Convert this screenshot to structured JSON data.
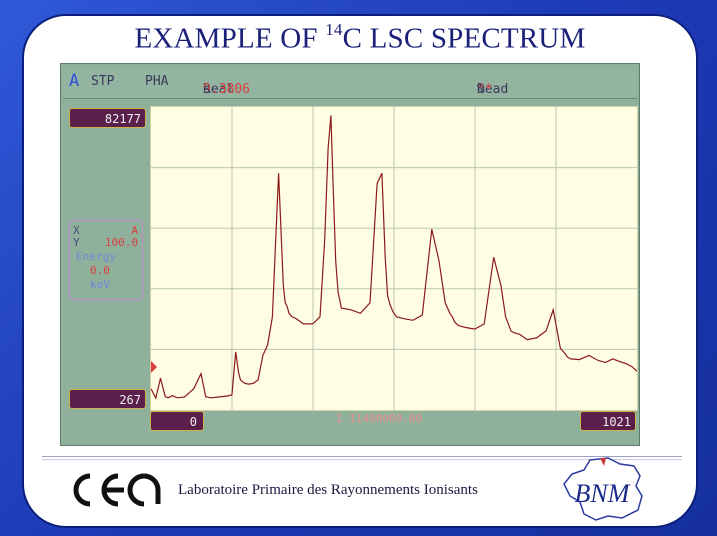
{
  "slide": {
    "title_prefix": "EXAMPLE OF ",
    "title_sup": "14",
    "title_suffix": "C LSC SPECTRUM",
    "footer_text": "Laboratoire Primaire des Rayonnements Ionisants",
    "logo_left": "cea",
    "logo_right": "BNM"
  },
  "instrument": {
    "mode": "A",
    "status": "STP",
    "function": "PHA",
    "real_label": "Real",
    "real_value": "9.3806",
    "real_unit": "s",
    "dead_label": "Dead",
    "dead_value": "**",
    "dead_unit": "%",
    "y_max": "82177",
    "y_min": "267",
    "x_min": "0",
    "x_max": "1021",
    "cursor_readout": "I  11400000.00",
    "side_panel": {
      "row1_left": "X",
      "row1_right": "A",
      "row2_left": "Y",
      "row2_right": "100.0",
      "row3": "Energy",
      "row4": "0.0",
      "row5": "keV"
    }
  },
  "colors": {
    "plot_bg": "#fffde4",
    "trace": "#8b1a1a",
    "grid": "#b9c8b2",
    "panel": "#8fb19b",
    "label_box": "#5a1f4a"
  },
  "chart_data": {
    "type": "line",
    "title": "",
    "xlabel": "",
    "ylabel": "",
    "xlim": [
      0,
      1021
    ],
    "ylim": [
      267,
      82177
    ],
    "grid": true,
    "series": [
      {
        "x": [
          0,
          10,
          20,
          30,
          36,
          45,
          55,
          70,
          90,
          105,
          115,
          125,
          140,
          160,
          170,
          178,
          184,
          188,
          192,
          198,
          205,
          215,
          225,
          235,
          245,
          255,
          262,
          268,
          274,
          278,
          282,
          286,
          290,
          296,
          305,
          320,
          340,
          355,
          365,
          372,
          378,
          383,
          388,
          393,
          400,
          420,
          440,
          460,
          475,
          485,
          492,
          497,
          502,
          508,
          516,
          530,
          550,
          570,
          590,
          605,
          618,
          628,
          633,
          638,
          646,
          660,
          680,
          700,
          720,
          735,
          745,
          752,
          756,
          762,
          775,
          790,
          810,
          830,
          845,
          860,
          870,
          875,
          882,
          900,
          920,
          940,
          955,
          970,
          990,
          1000,
          1010,
          1021
        ],
        "y": [
          3500,
          800,
          6500,
          1200,
          900,
          1500,
          900,
          1100,
          3500,
          7800,
          1200,
          900,
          1100,
          1400,
          1700,
          14000,
          8000,
          6000,
          5500,
          5000,
          4800,
          5000,
          6000,
          13000,
          16000,
          24000,
          46000,
          65000,
          46000,
          33000,
          28000,
          27000,
          25000,
          24000,
          23500,
          22000,
          22000,
          24000,
          46000,
          72000,
          81500,
          60000,
          40000,
          31000,
          26500,
          26000,
          25000,
          28000,
          62000,
          65000,
          41000,
          30000,
          27500,
          25500,
          24000,
          23500,
          23000,
          24500,
          49000,
          40000,
          28000,
          25000,
          24000,
          22500,
          21500,
          21000,
          20500,
          22000,
          41000,
          33000,
          24000,
          21500,
          20000,
          19500,
          19000,
          17500,
          18000,
          20000,
          26000,
          15000,
          13500,
          12500,
          12000,
          11800,
          13000,
          11500,
          11000,
          12000,
          11000,
          10500,
          9800,
          8500
        ]
      }
    ]
  }
}
